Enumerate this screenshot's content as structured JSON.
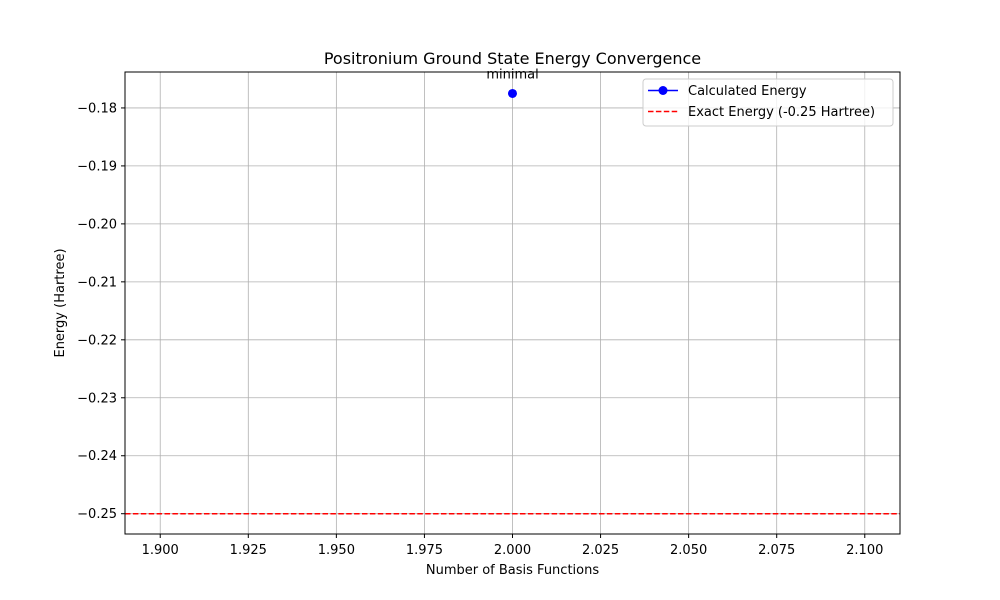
{
  "chart_data": {
    "type": "line",
    "title": "Positronium Ground State Energy Convergence",
    "xlabel": "Number of Basis Functions",
    "ylabel": "Energy (Hartree)",
    "xlim": [
      1.89,
      2.11
    ],
    "ylim": [
      -0.2535,
      -0.1738
    ],
    "x_ticks": [
      1.9,
      1.925,
      1.95,
      1.975,
      2.0,
      2.025,
      2.05,
      2.075,
      2.1
    ],
    "x_tick_labels": [
      "1.900",
      "1.925",
      "1.950",
      "1.975",
      "2.000",
      "2.025",
      "2.050",
      "2.075",
      "2.100"
    ],
    "y_ticks": [
      -0.18,
      -0.19,
      -0.2,
      -0.21,
      -0.22,
      -0.23,
      -0.24,
      -0.25
    ],
    "y_tick_labels": [
      "−0.18",
      "−0.19",
      "−0.20",
      "−0.21",
      "−0.22",
      "−0.23",
      "−0.24",
      "−0.25"
    ],
    "grid": true,
    "legend_position": "top-right",
    "series": [
      {
        "name": "Calculated Energy",
        "style": "solid-with-circle-markers",
        "color": "#0000ff",
        "points": [
          {
            "x": 2.0,
            "y": -0.1775,
            "label": "minimal"
          }
        ]
      },
      {
        "name": "Exact Energy (-0.25 Hartree)",
        "style": "dashed-horizontal-line",
        "color": "#ff0000",
        "y": -0.25
      }
    ]
  }
}
